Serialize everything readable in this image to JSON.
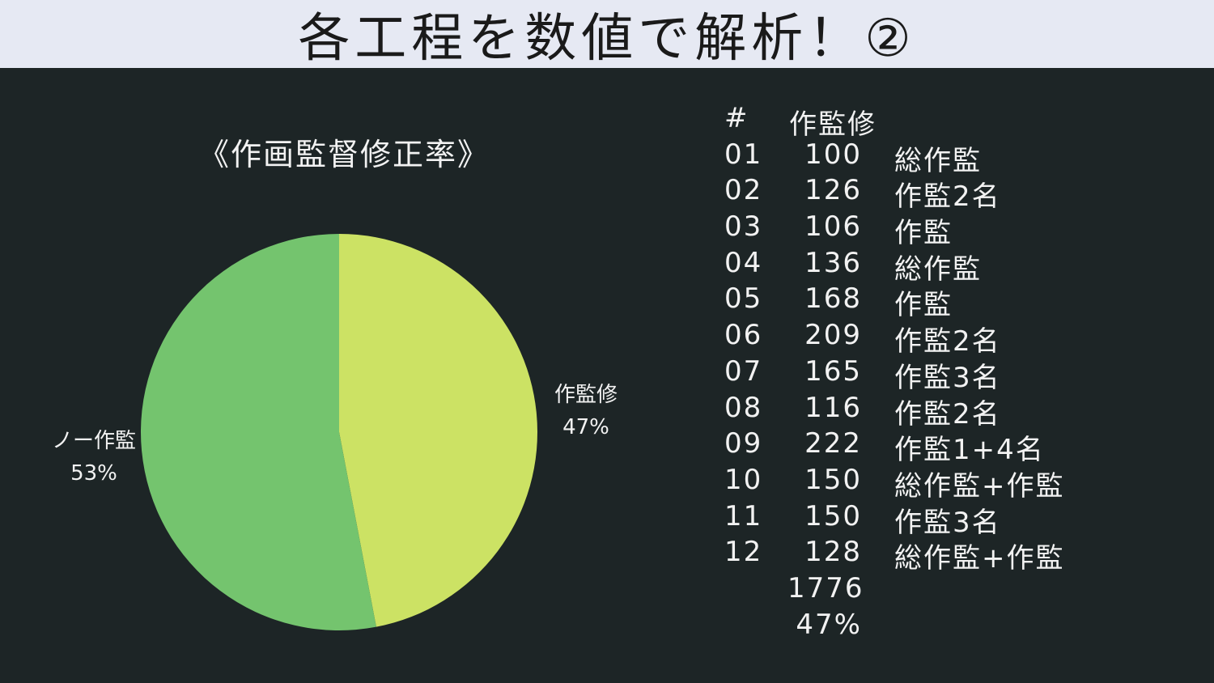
{
  "page": {
    "title": "各工程を数値で解析！②"
  },
  "colors": {
    "background": "#1d2526",
    "title_bar": "#e6e9f3",
    "slice_a": "#cce264",
    "slice_b": "#74c46e"
  },
  "chart_data": {
    "type": "pie",
    "title": "《作画監督修正率》",
    "slices": [
      {
        "label": "作監修",
        "percent_label": "47%",
        "value": 47
      },
      {
        "label": "ノー作監",
        "percent_label": "53%",
        "value": 53
      }
    ]
  },
  "table": {
    "header": {
      "num": "#",
      "value": "作監修"
    },
    "rows": [
      {
        "num": "01",
        "value": "100",
        "note": "総作監"
      },
      {
        "num": "02",
        "value": "126",
        "note": "作監2名"
      },
      {
        "num": "03",
        "value": "106",
        "note": "作監"
      },
      {
        "num": "04",
        "value": "136",
        "note": "総作監"
      },
      {
        "num": "05",
        "value": "168",
        "note": "作監"
      },
      {
        "num": "06",
        "value": "209",
        "note": "作監2名"
      },
      {
        "num": "07",
        "value": "165",
        "note": "作監3名"
      },
      {
        "num": "08",
        "value": "116",
        "note": "作監2名"
      },
      {
        "num": "09",
        "value": "222",
        "note": "作監1+4名"
      },
      {
        "num": "10",
        "value": "150",
        "note": "総作監+作監"
      },
      {
        "num": "11",
        "value": "150",
        "note": "作監3名"
      },
      {
        "num": "12",
        "value": "128",
        "note": "総作監+作監"
      }
    ],
    "total": "1776",
    "rate": "47%"
  }
}
